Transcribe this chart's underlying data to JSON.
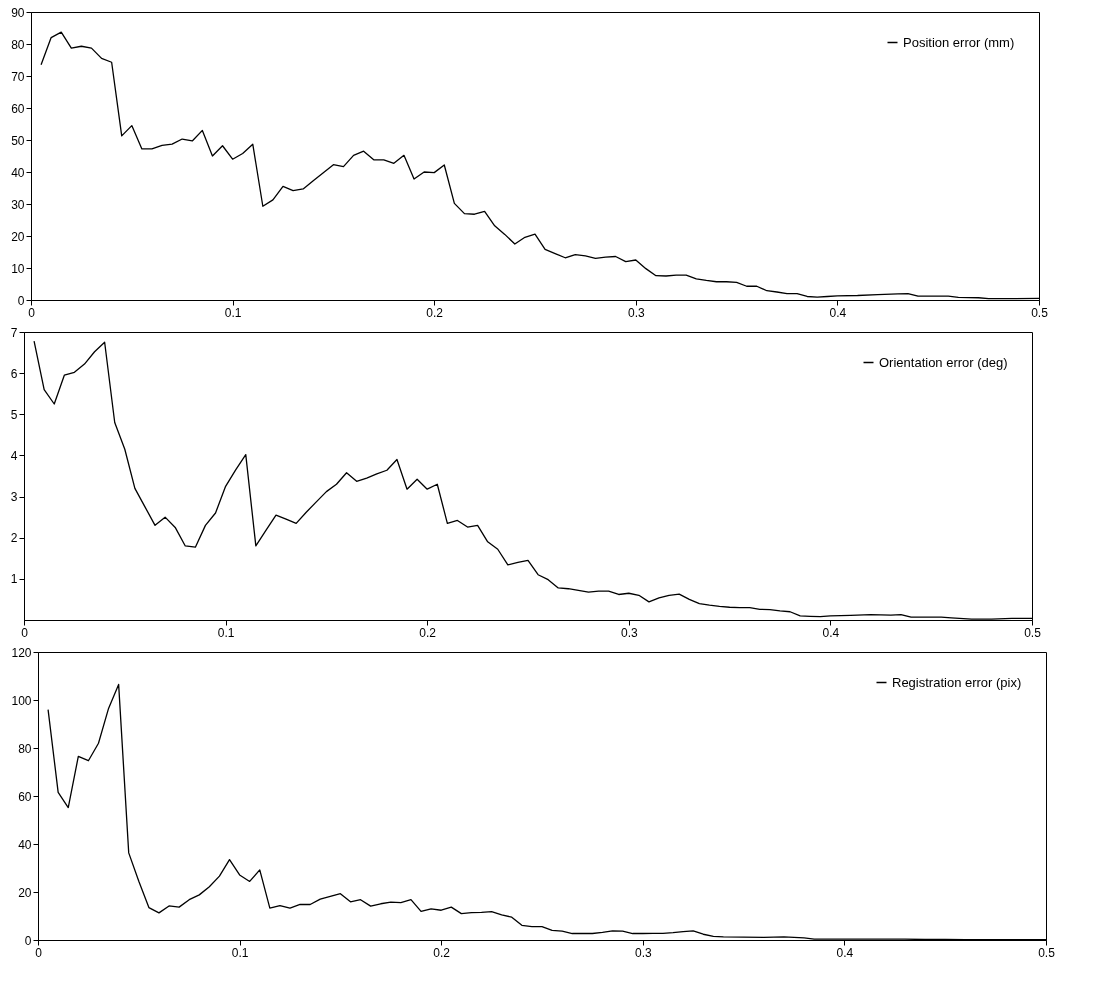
{
  "chart_data": [
    {
      "type": "line",
      "xlim": [
        0,
        0.5
      ],
      "xticks": [
        0,
        0.1,
        0.2,
        0.3,
        0.4,
        0.5
      ],
      "ylim": [
        0,
        90
      ],
      "yticks": [
        0,
        10,
        20,
        30,
        40,
        50,
        60,
        70,
        80,
        90
      ],
      "grid": false,
      "legend": "top right",
      "marker": "none",
      "line_style": "solid",
      "x": [
        0.005,
        0.01,
        0.015,
        0.02,
        0.025,
        0.03,
        0.035,
        0.04,
        0.045,
        0.05,
        0.055,
        0.06,
        0.065,
        0.07,
        0.075,
        0.08,
        0.085,
        0.09,
        0.095,
        0.1,
        0.105,
        0.11,
        0.115,
        0.12,
        0.125,
        0.13,
        0.135,
        0.14,
        0.145,
        0.15,
        0.155,
        0.16,
        0.165,
        0.17,
        0.175,
        0.18,
        0.185,
        0.19,
        0.195,
        0.2,
        0.205,
        0.21,
        0.215,
        0.22,
        0.225,
        0.23,
        0.235,
        0.24,
        0.245,
        0.25,
        0.255,
        0.26,
        0.265,
        0.27,
        0.275,
        0.28,
        0.285,
        0.29,
        0.295,
        0.3,
        0.305,
        0.31,
        0.315,
        0.32,
        0.325,
        0.33,
        0.335,
        0.34,
        0.345,
        0.35,
        0.355,
        0.36,
        0.365,
        0.37,
        0.375,
        0.38,
        0.385,
        0.39,
        0.395,
        0.4,
        0.41,
        0.42,
        0.43,
        0.435,
        0.44,
        0.45,
        0.455,
        0.46,
        0.47,
        0.475,
        0.5
      ],
      "series": [
        {
          "name": "Position error (mm)",
          "color": "#000000",
          "values": [
            73.5,
            82,
            83.7,
            78.7,
            79.3,
            78.7,
            75.5,
            74.3,
            51.3,
            54.5,
            47.2,
            47.2,
            48.3,
            48.7,
            50.3,
            49.7,
            53,
            45,
            48.2,
            44,
            45.8,
            48.7,
            29.3,
            31.3,
            35.5,
            34.2,
            34.7,
            37.3,
            39.8,
            42.3,
            41.7,
            45.2,
            46.5,
            43.8,
            43.8,
            42.7,
            45.2,
            37.8,
            40,
            39.8,
            42.2,
            30.2,
            27,
            26.8,
            27.7,
            23.2,
            20.5,
            17.5,
            19.6,
            20.6,
            15.8,
            14.5,
            13.2,
            14.2,
            13.8,
            13,
            13.4,
            13.6,
            12,
            12.5,
            9.8,
            7.6,
            7.5,
            7.8,
            7.8,
            6.6,
            6.1,
            5.7,
            5.7,
            5.5,
            4.3,
            4.3,
            2.9,
            2.5,
            2,
            2,
            1.1,
            0.9,
            1.1,
            1.3,
            1.4,
            1.7,
            1.9,
            2.0,
            1.2,
            1.2,
            1.2,
            0.8,
            0.7,
            0.4,
            0.5
          ]
        }
      ]
    },
    {
      "type": "line",
      "xlim": [
        0,
        0.5
      ],
      "xticks": [
        0,
        0.1,
        0.2,
        0.3,
        0.4,
        0.5
      ],
      "ylim": [
        0,
        7
      ],
      "yticks": [
        1,
        2,
        3,
        4,
        5,
        6,
        7
      ],
      "grid": false,
      "legend": "top right",
      "marker": "none",
      "line_style": "solid",
      "x": [
        0.005,
        0.01,
        0.015,
        0.02,
        0.025,
        0.03,
        0.035,
        0.04,
        0.045,
        0.05,
        0.055,
        0.06,
        0.065,
        0.07,
        0.075,
        0.08,
        0.085,
        0.09,
        0.095,
        0.1,
        0.105,
        0.11,
        0.115,
        0.12,
        0.125,
        0.13,
        0.135,
        0.14,
        0.145,
        0.15,
        0.155,
        0.16,
        0.165,
        0.17,
        0.175,
        0.18,
        0.185,
        0.19,
        0.195,
        0.2,
        0.205,
        0.21,
        0.215,
        0.22,
        0.225,
        0.23,
        0.235,
        0.24,
        0.245,
        0.25,
        0.255,
        0.26,
        0.265,
        0.27,
        0.275,
        0.28,
        0.285,
        0.29,
        0.295,
        0.3,
        0.305,
        0.31,
        0.315,
        0.32,
        0.325,
        0.33,
        0.335,
        0.34,
        0.345,
        0.35,
        0.355,
        0.36,
        0.365,
        0.37,
        0.375,
        0.38,
        0.385,
        0.39,
        0.395,
        0.4,
        0.41,
        0.42,
        0.43,
        0.435,
        0.44,
        0.45,
        0.455,
        0.46,
        0.47,
        0.48,
        0.49,
        0.5
      ],
      "series": [
        {
          "name": "Orientation error (deg)",
          "color": "#000000",
          "values": [
            6.78,
            5.6,
            5.25,
            5.95,
            6.02,
            6.22,
            6.52,
            6.75,
            4.8,
            4.15,
            3.2,
            2.75,
            2.3,
            2.5,
            2.25,
            1.8,
            1.77,
            2.3,
            2.6,
            3.25,
            3.65,
            4.02,
            1.8,
            2.18,
            2.55,
            2.45,
            2.35,
            2.62,
            2.87,
            3.12,
            3.3,
            3.58,
            3.37,
            3.45,
            3.55,
            3.64,
            3.9,
            3.18,
            3.42,
            3.18,
            3.3,
            2.35,
            2.42,
            2.26,
            2.3,
            1.9,
            1.72,
            1.34,
            1.4,
            1.45,
            1.1,
            0.98,
            0.78,
            0.76,
            0.72,
            0.68,
            0.7,
            0.7,
            0.62,
            0.65,
            0.6,
            0.44,
            0.54,
            0.6,
            0.63,
            0.5,
            0.4,
            0.36,
            0.33,
            0.31,
            0.3,
            0.3,
            0.26,
            0.25,
            0.22,
            0.2,
            0.1,
            0.09,
            0.08,
            0.1,
            0.11,
            0.13,
            0.12,
            0.13,
            0.07,
            0.07,
            0.07,
            0.05,
            0.02,
            0.02,
            0.04,
            0.04
          ]
        }
      ]
    },
    {
      "type": "line",
      "xlim": [
        0,
        0.5
      ],
      "xticks": [
        0,
        0.1,
        0.2,
        0.3,
        0.4,
        0.5
      ],
      "ylim": [
        0,
        120
      ],
      "yticks": [
        0,
        20,
        40,
        60,
        80,
        100,
        120
      ],
      "grid": false,
      "legend": "top right",
      "marker": "none",
      "line_style": "solid",
      "x": [
        0.005,
        0.01,
        0.015,
        0.02,
        0.025,
        0.03,
        0.035,
        0.04,
        0.045,
        0.05,
        0.055,
        0.06,
        0.065,
        0.07,
        0.075,
        0.08,
        0.085,
        0.09,
        0.095,
        0.1,
        0.105,
        0.11,
        0.115,
        0.12,
        0.125,
        0.13,
        0.135,
        0.14,
        0.145,
        0.15,
        0.155,
        0.16,
        0.165,
        0.17,
        0.175,
        0.18,
        0.185,
        0.19,
        0.195,
        0.2,
        0.205,
        0.21,
        0.215,
        0.22,
        0.225,
        0.23,
        0.235,
        0.24,
        0.245,
        0.25,
        0.255,
        0.26,
        0.265,
        0.27,
        0.275,
        0.28,
        0.285,
        0.29,
        0.295,
        0.3,
        0.305,
        0.31,
        0.315,
        0.32,
        0.325,
        0.33,
        0.335,
        0.34,
        0.35,
        0.36,
        0.37,
        0.375,
        0.38,
        0.385,
        0.39,
        0.4,
        0.43,
        0.44,
        0.45,
        0.46,
        0.5
      ],
      "series": [
        {
          "name": "Registration error (pix)",
          "color": "#000000",
          "values": [
            96,
            61.5,
            55.2,
            76.5,
            74.7,
            82,
            96.5,
            106.5,
            36.3,
            24.5,
            13.5,
            11.3,
            14.2,
            13.7,
            16.8,
            18.8,
            22.2,
            26.6,
            33.5,
            27.1,
            24.4,
            29.2,
            13.3,
            14.3,
            13.3,
            14.8,
            14.8,
            17,
            18.2,
            19.3,
            15.9,
            16.8,
            14.1,
            15.1,
            15.8,
            15.6,
            16.8,
            11.9,
            13,
            12.4,
            13.7,
            11,
            11.4,
            11.5,
            11.8,
            10.5,
            9.5,
            6.1,
            5.6,
            5.6,
            4,
            3.7,
            2.7,
            2.7,
            2.7,
            3.2,
            3.8,
            3.7,
            2.7,
            2.7,
            2.8,
            2.8,
            3.1,
            3.5,
            3.8,
            2.4,
            1.5,
            1.3,
            1.2,
            1.1,
            1.3,
            1.1,
            0.9,
            0.4,
            0.4,
            0.4,
            0.4,
            0.2,
            0.2,
            0.1,
            0.1
          ]
        }
      ]
    }
  ]
}
